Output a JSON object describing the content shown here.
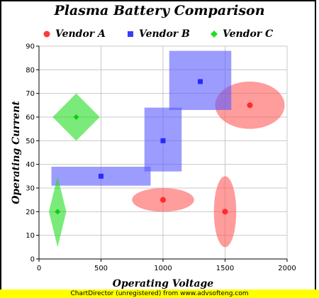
{
  "chart_data": {
    "type": "scatter",
    "title": "Plasma Battery Comparison",
    "xlabel": "Operating Voltage",
    "ylabel": "Operating Current",
    "xlim": [
      0,
      2000
    ],
    "ylim": [
      0,
      90
    ],
    "x_ticks": [
      0,
      500,
      1000,
      1500,
      2000
    ],
    "y_ticks": [
      0,
      10,
      20,
      30,
      40,
      50,
      60,
      70,
      80,
      90
    ],
    "grid": true,
    "legend_position": "top",
    "series": [
      {
        "name": "Vendor A",
        "color": "#ff5a5a",
        "marker": "circle",
        "zone_shape": "ellipse",
        "points": [
          {
            "x": 1000,
            "y": 25,
            "x_min": 750,
            "x_max": 1250,
            "y_min": 20,
            "y_max": 30
          },
          {
            "x": 1500,
            "y": 20,
            "x_min": 1410,
            "x_max": 1590,
            "y_min": 5,
            "y_max": 35
          },
          {
            "x": 1700,
            "y": 65,
            "x_min": 1420,
            "x_max": 1980,
            "y_min": 55,
            "y_max": 75
          }
        ]
      },
      {
        "name": "Vendor B",
        "color": "#5a5aff",
        "marker": "square",
        "zone_shape": "rectangle",
        "points": [
          {
            "x": 500,
            "y": 35,
            "x_min": 100,
            "x_max": 900,
            "y_min": 31,
            "y_max": 39
          },
          {
            "x": 1000,
            "y": 50,
            "x_min": 850,
            "x_max": 1150,
            "y_min": 37,
            "y_max": 64
          },
          {
            "x": 1300,
            "y": 75,
            "x_min": 1050,
            "x_max": 1550,
            "y_min": 63,
            "y_max": 88
          }
        ]
      },
      {
        "name": "Vendor C",
        "color": "#22dd22",
        "marker": "diamond",
        "zone_shape": "diamond",
        "points": [
          {
            "x": 150,
            "y": 20,
            "x_min": 80,
            "x_max": 220,
            "y_min": 5,
            "y_max": 35
          },
          {
            "x": 300,
            "y": 60,
            "x_min": 110,
            "x_max": 490,
            "y_min": 50,
            "y_max": 70
          }
        ]
      }
    ]
  },
  "footer": "ChartDirector (unregistered) from www.advsofteng.com"
}
